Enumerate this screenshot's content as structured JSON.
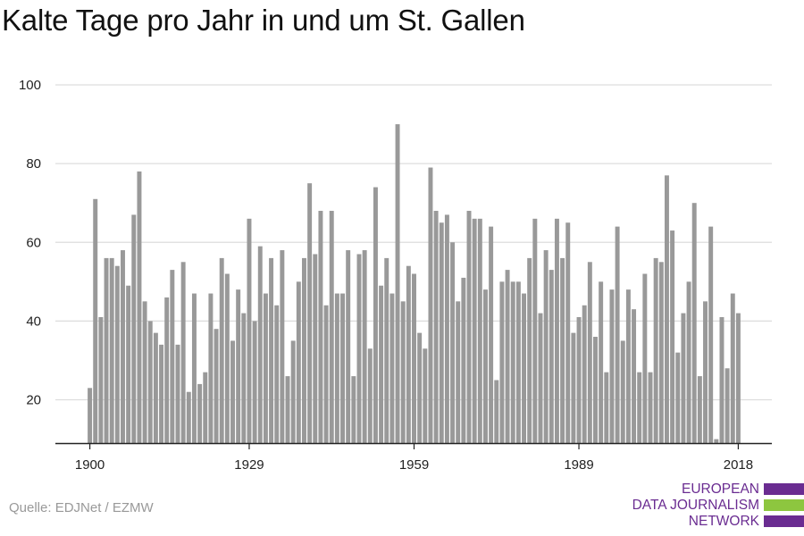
{
  "title": "Kalte Tage pro Jahr in und um St. Gallen",
  "source": "Quelle: EDJNet / EZMW",
  "logo": {
    "lines": [
      "EUROPEAN",
      "DATA JOURNALISM",
      "NETWORK"
    ],
    "colors": {
      "text": "#6a2c91",
      "purple": "#6a2c91",
      "green": "#8dc63f"
    }
  },
  "colors": {
    "bar": "#999999",
    "grid": "#dddddd",
    "axis": "#222222"
  },
  "chart_data": {
    "type": "bar",
    "title": "Kalte Tage pro Jahr in und um St. Gallen",
    "xlabel": "",
    "ylabel": "",
    "xlim": [
      1900,
      2022
    ],
    "ylim": [
      9,
      100
    ],
    "x_ticks": [
      1900,
      1929,
      1959,
      1989,
      2018
    ],
    "y_ticks": [
      20,
      40,
      60,
      80,
      100
    ],
    "grid": "horizontal",
    "legend": "none",
    "series": [
      {
        "x": [
          1900,
          1901,
          1902,
          1903,
          1904,
          1905,
          1906,
          1907,
          1908,
          1909,
          1910,
          1911,
          1912,
          1913,
          1914,
          1915,
          1916,
          1917,
          1918,
          1919,
          1920,
          1921,
          1922,
          1923,
          1924,
          1925,
          1926,
          1927,
          1928,
          1929,
          1930,
          1931,
          1932,
          1933,
          1934,
          1935,
          1936,
          1937,
          1938,
          1939,
          1940,
          1941,
          1942,
          1943,
          1944,
          1945,
          1946,
          1947,
          1948,
          1949,
          1950,
          1951,
          1952,
          1953,
          1954,
          1955,
          1956,
          1957,
          1958,
          1959,
          1960,
          1961,
          1962,
          1963,
          1964,
          1965,
          1966,
          1967,
          1968,
          1969,
          1970,
          1971,
          1972,
          1973,
          1974,
          1975,
          1976,
          1977,
          1978,
          1979,
          1980,
          1981,
          1982,
          1983,
          1984,
          1985,
          1986,
          1987,
          1988,
          1989,
          1990,
          1991,
          1992,
          1993,
          1994,
          1995,
          1996,
          1997,
          1998,
          1999,
          2000,
          2001,
          2002,
          2003,
          2004,
          2005,
          2006,
          2007,
          2008,
          2009,
          2010,
          2011,
          2012,
          2013,
          2014,
          2015,
          2016,
          2017,
          2018
        ],
        "values": [
          23,
          71,
          41,
          56,
          56,
          54,
          58,
          49,
          67,
          78,
          45,
          40,
          37,
          34,
          46,
          53,
          34,
          55,
          22,
          47,
          24,
          27,
          47,
          38,
          56,
          52,
          35,
          48,
          42,
          66,
          40,
          59,
          47,
          56,
          44,
          58,
          26,
          35,
          50,
          56,
          75,
          57,
          68,
          44,
          68,
          47,
          47,
          58,
          26,
          57,
          58,
          33,
          74,
          49,
          56,
          47,
          90,
          45,
          54,
          52,
          37,
          33,
          79,
          68,
          65,
          67,
          60,
          45,
          51,
          68,
          66,
          66,
          48,
          64,
          25,
          50,
          53,
          50,
          50,
          47,
          56,
          66,
          42,
          58,
          53,
          66,
          56,
          65,
          37,
          41,
          44,
          55,
          36,
          50,
          27,
          48,
          64,
          35,
          48,
          43,
          27,
          52,
          27,
          56,
          55,
          77,
          63,
          32,
          42,
          50,
          70,
          26,
          45,
          64,
          10,
          41,
          28,
          47,
          42
        ]
      }
    ]
  }
}
